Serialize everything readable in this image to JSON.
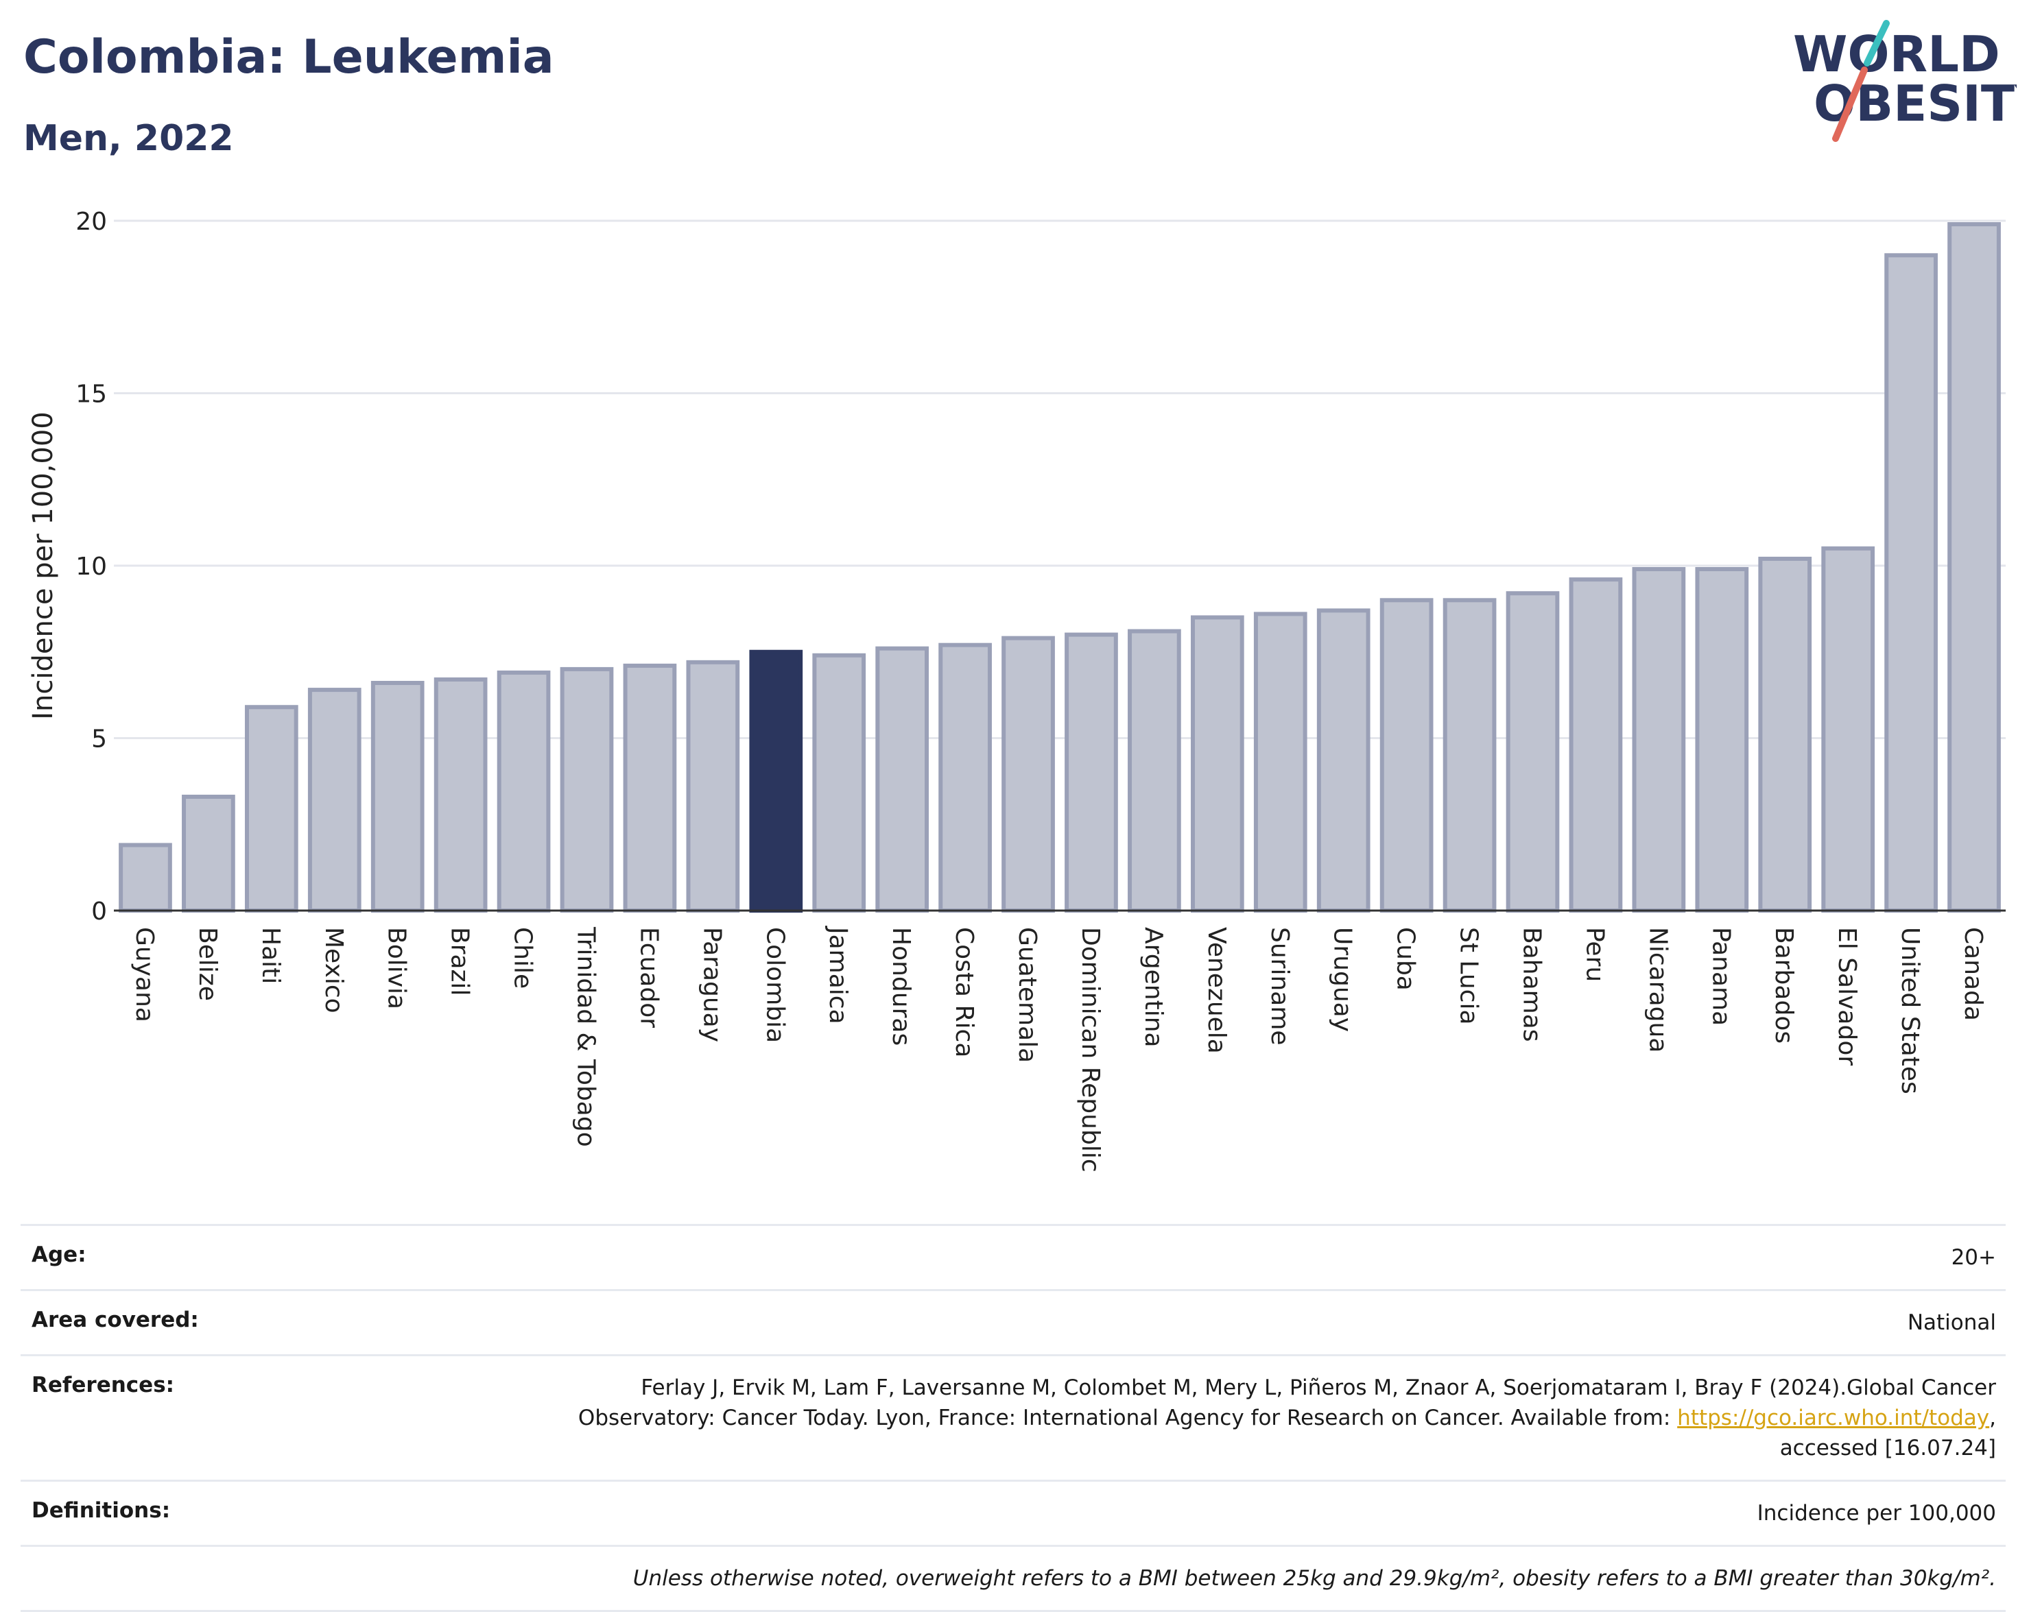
{
  "header": {
    "title": "Colombia: Leukemia",
    "subtitle": "Men, 2022"
  },
  "logo": {
    "line1": "WORLD",
    "line2": "OBESITY"
  },
  "colors": {
    "highlight": "#2b365e",
    "bar_fill": "#bfc3d0",
    "bar_stroke": "#9aa0b7",
    "axis": "#333333",
    "grid": "#e4e6ec"
  },
  "chart_data": {
    "type": "bar",
    "ylabel": "Incidence per 100,000",
    "ylim": [
      0,
      20
    ],
    "yticks": [
      0,
      5,
      10,
      15,
      20
    ],
    "grid": true,
    "highlight": "Colombia",
    "categories": [
      "Guyana",
      "Belize",
      "Haiti",
      "Mexico",
      "Bolivia",
      "Brazil",
      "Chile",
      "Trinidad & Tobago",
      "Ecuador",
      "Paraguay",
      "Colombia",
      "Jamaica",
      "Honduras",
      "Costa Rica",
      "Guatemala",
      "Dominican Republic",
      "Argentina",
      "Venezuela",
      "Suriname",
      "Uruguay",
      "Cuba",
      "St Lucia",
      "Bahamas",
      "Peru",
      "Nicaragua",
      "Panama",
      "Barbados",
      "El Salvador",
      "United States",
      "Canada"
    ],
    "values": [
      1.9,
      3.3,
      5.9,
      6.4,
      6.6,
      6.7,
      6.9,
      7.0,
      7.1,
      7.2,
      7.5,
      7.4,
      7.6,
      7.7,
      7.9,
      8.0,
      8.1,
      8.5,
      8.6,
      8.7,
      9.0,
      9.0,
      9.2,
      9.6,
      9.9,
      9.9,
      10.2,
      10.5,
      19.0,
      19.9
    ]
  },
  "meta": {
    "age_label": "Age:",
    "age_value": "20+",
    "area_label": "Area covered:",
    "area_value": "National",
    "references_label": "References:",
    "references_line1": "Ferlay J, Ervik M, Lam F, Laversanne M, Colombet M, Mery L, Piñeros M, Znaor A, Soerjomataram I, Bray F (2024).Global Cancer",
    "references_line2": "Observatory: Cancer Today. Lyon, France: International Agency for Research on Cancer. Available from: ",
    "references_link": "https://gco.iarc.who.int/today",
    "references_line2_end": ",",
    "references_line3": "accessed [16.07.24]",
    "definitions_label": "Definitions:",
    "definitions_value": "Incidence per 100,000",
    "note": "Unless otherwise noted, overweight refers to a BMI between 25kg and 29.9kg/m², obesity refers to a BMI greater than 30kg/m²."
  }
}
